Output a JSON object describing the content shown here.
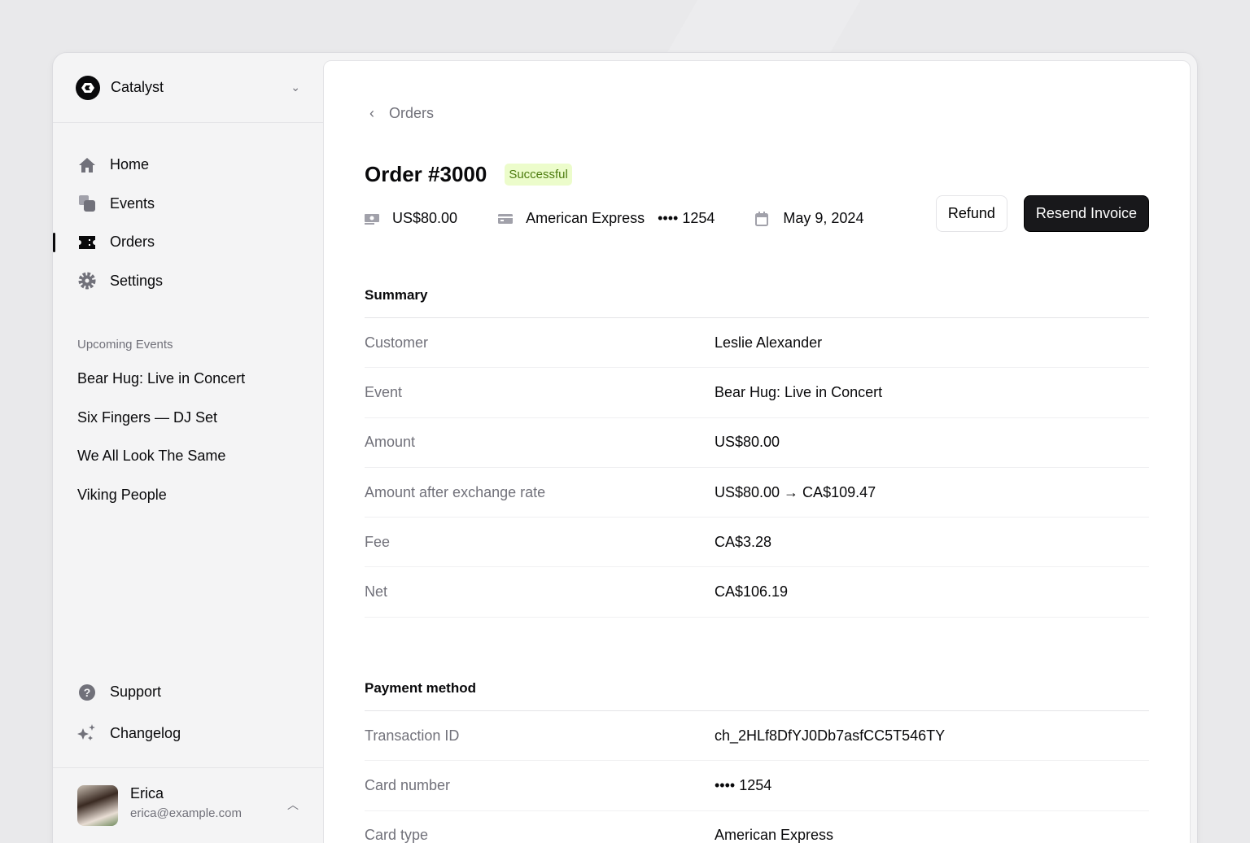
{
  "sidebar": {
    "team": "Catalyst",
    "nav": [
      {
        "label": "Home",
        "icon": "home-icon"
      },
      {
        "label": "Events",
        "icon": "events-icon"
      },
      {
        "label": "Orders",
        "icon": "ticket-icon",
        "active": true
      },
      {
        "label": "Settings",
        "icon": "gear-icon"
      }
    ],
    "upcoming_heading": "Upcoming Events",
    "events": [
      "Bear Hug: Live in Concert",
      "Six Fingers — DJ Set",
      "We All Look The Same",
      "Viking People"
    ],
    "footer_nav": [
      {
        "label": "Support",
        "icon": "question-icon"
      },
      {
        "label": "Changelog",
        "icon": "sparkles-icon"
      }
    ],
    "user": {
      "name": "Erica",
      "email": "erica@example.com"
    }
  },
  "main": {
    "breadcrumb": "Orders",
    "title": "Order #3000",
    "status": "Successful",
    "status_color": "#4d7c0f",
    "meta": {
      "amount": "US$80.00",
      "card_brand": "American Express",
      "card_last4": "•••• 1254",
      "date": "May 9, 2024"
    },
    "buttons": {
      "refund": "Refund",
      "resend": "Resend Invoice"
    },
    "summary": {
      "heading": "Summary",
      "rows": [
        {
          "label": "Customer",
          "value": "Leslie Alexander"
        },
        {
          "label": "Event",
          "value": "Bear Hug: Live in Concert"
        },
        {
          "label": "Amount",
          "value": "US$80.00"
        },
        {
          "label": "Amount after exchange rate",
          "value": "US$80.00 → CA$109.47"
        },
        {
          "label": "Fee",
          "value": "CA$3.28"
        },
        {
          "label": "Net",
          "value": "CA$106.19"
        }
      ]
    },
    "payment": {
      "heading": "Payment method",
      "rows": [
        {
          "label": "Transaction ID",
          "value": "ch_2HLf8DfYJ0Db7asfCC5T546TY"
        },
        {
          "label": "Card number",
          "value": "•••• 1254"
        },
        {
          "label": "Card type",
          "value": "American Express"
        }
      ]
    }
  }
}
